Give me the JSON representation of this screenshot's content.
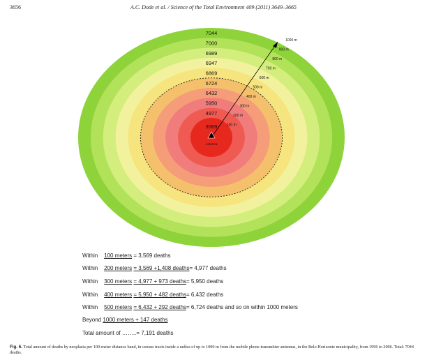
{
  "header": {
    "page_number": "3656",
    "running_head": "A.C. Dode et al. / Science of the Total Environment 409 (2011) 3649–3665"
  },
  "chart_data": {
    "type": "concentric-rings",
    "title": "Total amount of deaths by neoplasia per 100-meter distance band",
    "bands": [
      {
        "death_label": "7044",
        "color": "#8ed33a"
      },
      {
        "death_label": "7000",
        "color": "#b2e25a"
      },
      {
        "death_label": "6989",
        "color": "#d4ee7e"
      },
      {
        "death_label": "6947",
        "color": "#f2f29e"
      },
      {
        "death_label": "6869",
        "color": "#f6e47e"
      },
      {
        "death_label": "6724",
        "color": "#f5c06c"
      },
      {
        "death_label": "6432",
        "color": "#f59c78"
      },
      {
        "death_label": "5950",
        "color": "#f07c7c"
      },
      {
        "death_label": "4977",
        "color": "#ef5a52"
      },
      {
        "death_label": "3569",
        "color": "#e6281e"
      }
    ],
    "distance_labels": [
      "100 m",
      "200 m",
      "300 m",
      "400 m",
      "500 m",
      "600 m",
      "700 m",
      "800 m",
      "900 m",
      "1000 m"
    ],
    "center_label": "Antenna",
    "dashed_circle_distance_m": 500
  },
  "summary": {
    "lines": [
      {
        "a": "Within",
        "b": "100 meters",
        "c": "= 3,569 deaths"
      },
      {
        "a": "Within",
        "b": "200 meters",
        "c": "=  3,569 +1,408 deaths",
        "d": "= 4,977 deaths"
      },
      {
        "a": "Within",
        "b": "300 meters",
        "c": "=  4,977 +   973 deaths",
        "d": "=  5,950 deaths"
      },
      {
        "a": "Within",
        "b": "400 meters",
        "c": "=  5,950  +  482 deaths",
        "d": "= 6,432 deaths"
      },
      {
        "a": "Within",
        "b": "500 meters",
        "c": "= 6,432  +   292 deaths",
        "d": "=  6,724 deaths and so on within 1000 meters"
      }
    ],
    "beyond": {
      "a": "Beyond",
      "b": "1000 meters  +  147 deaths"
    },
    "total": {
      "a": "Total amount of ……..",
      "b": "= 7,191 deaths"
    }
  },
  "caption": {
    "label": "Fig. 6.",
    "text": "Total amount of deaths by neoplasia per 100-meter distance band, in census tracts inside a radius of up to 1000 m from the mobile phone transmitter antennas, in the Belo Horizonte municipality, from 1996 to 2006. Total: 7044 deaths."
  }
}
